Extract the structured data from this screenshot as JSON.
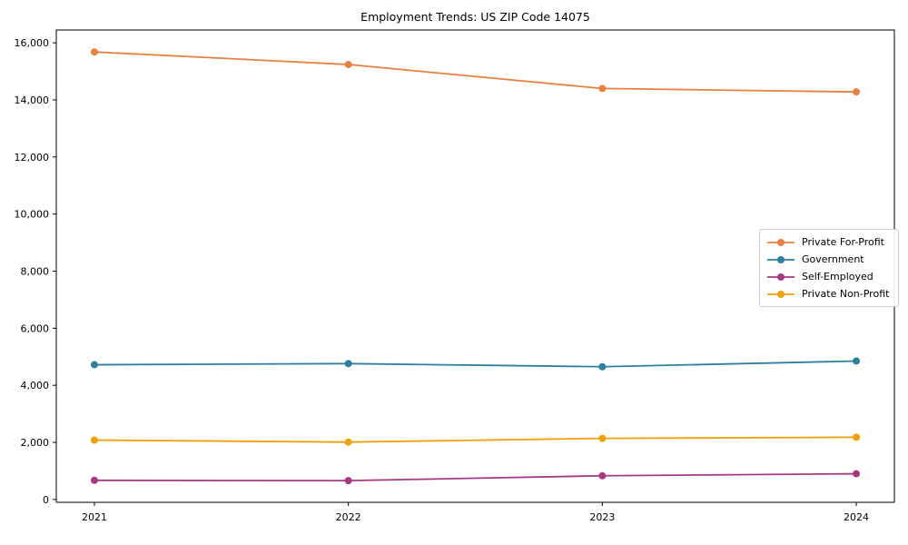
{
  "title": "Employment Trends: US ZIP Code 14075",
  "chart_data": {
    "type": "line",
    "title": "Employment Trends: US ZIP Code 14075",
    "x": [
      "2021",
      "2022",
      "2023",
      "2024"
    ],
    "series": [
      {
        "name": "Private For-Profit",
        "color": "#e8803f",
        "values": [
          15680,
          15240,
          14400,
          14280
        ]
      },
      {
        "name": "Government",
        "color": "#2d80a0",
        "values": [
          4720,
          4760,
          4650,
          4850
        ]
      },
      {
        "name": "Self-Employed",
        "color": "#a63a82",
        "values": [
          670,
          660,
          830,
          900
        ]
      },
      {
        "name": "Private Non-Profit",
        "color": "#f0a10a",
        "values": [
          2080,
          2010,
          2140,
          2180
        ]
      }
    ],
    "xlabel": "",
    "ylabel": "",
    "ylim": [
      -100,
      16450
    ],
    "yticks": [
      0,
      2000,
      4000,
      6000,
      8000,
      10000,
      12000,
      14000,
      16000
    ],
    "grid": false,
    "marker": "o",
    "legend_position": "center right"
  }
}
